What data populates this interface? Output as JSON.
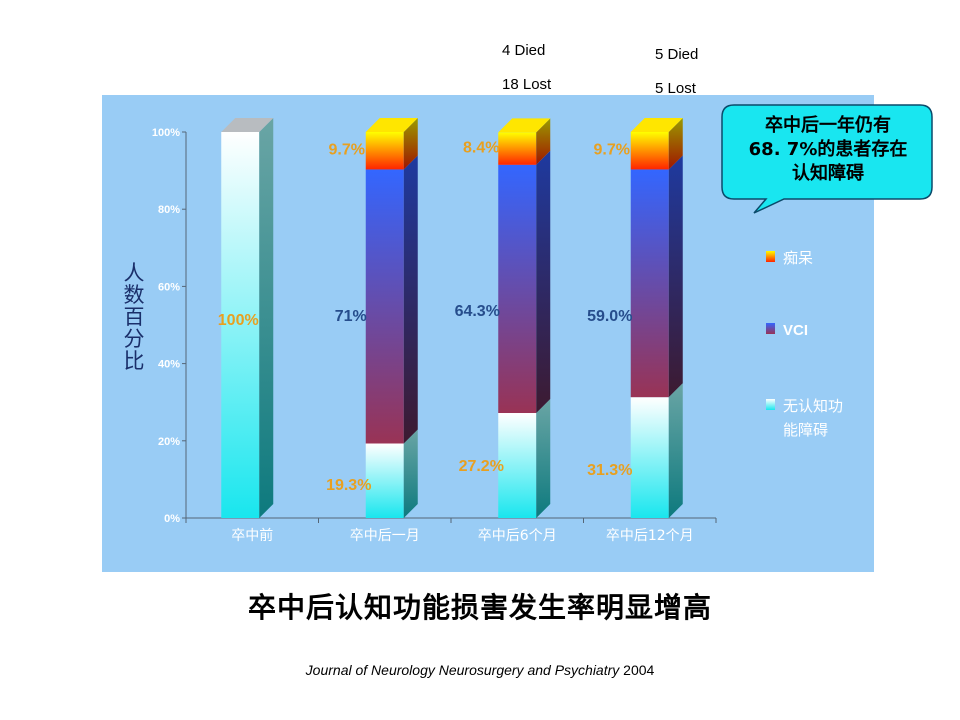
{
  "annotations_top": [
    {
      "died": "4 Died",
      "lost": "18 Lost"
    },
    {
      "died": "5 Died",
      "lost": "5 Lost"
    }
  ],
  "callout": {
    "lines": [
      "卒中后一年仍有",
      "68. 7%的患者存在",
      "认知障碍"
    ]
  },
  "slide_title": "卒中后认知功能损害发生率明显增高",
  "citation": {
    "journal": "Journal of Neurology Neurosurgery and Psychiatry",
    "year": "2004"
  },
  "colors": {
    "panel": "#99ccf5",
    "dementia_top": "#ffff00",
    "dementia_bottom": "#ff2400",
    "vci_top": "#3366ff",
    "vci_bottom": "#993355",
    "normal_top": "#ffffff",
    "normal_bottom": "#19e6ee",
    "label_orange": "#e8a020",
    "label_blue": "#264d8c"
  },
  "chart_data": {
    "type": "bar",
    "stacked": true,
    "ylabel": "人数百分比",
    "yticks": [
      "0%",
      "20%",
      "40%",
      "60%",
      "80%",
      "100%"
    ],
    "ylim": [
      0,
      100
    ],
    "categories": [
      "卒中前",
      "卒中后一月",
      "卒中后6个月",
      "卒中后12个月"
    ],
    "series": [
      {
        "name": "无认知功能障碍",
        "values": [
          100,
          19.3,
          27.2,
          31.3
        ],
        "labels": [
          "100%",
          "19.3%",
          "27.2%",
          "31.3%"
        ]
      },
      {
        "name": "VCI",
        "values": [
          0,
          71,
          64.3,
          59.0
        ],
        "labels": [
          "",
          "71%",
          "64.3%",
          "59.0%"
        ]
      },
      {
        "name": "痴呆",
        "values": [
          0,
          9.7,
          8.4,
          9.7
        ],
        "labels": [
          "",
          "9.7%",
          "8.4%",
          "9.7%"
        ]
      }
    ],
    "legend_order": [
      "痴呆",
      "VCI",
      "无认知功能障碍"
    ],
    "legend": "right"
  }
}
